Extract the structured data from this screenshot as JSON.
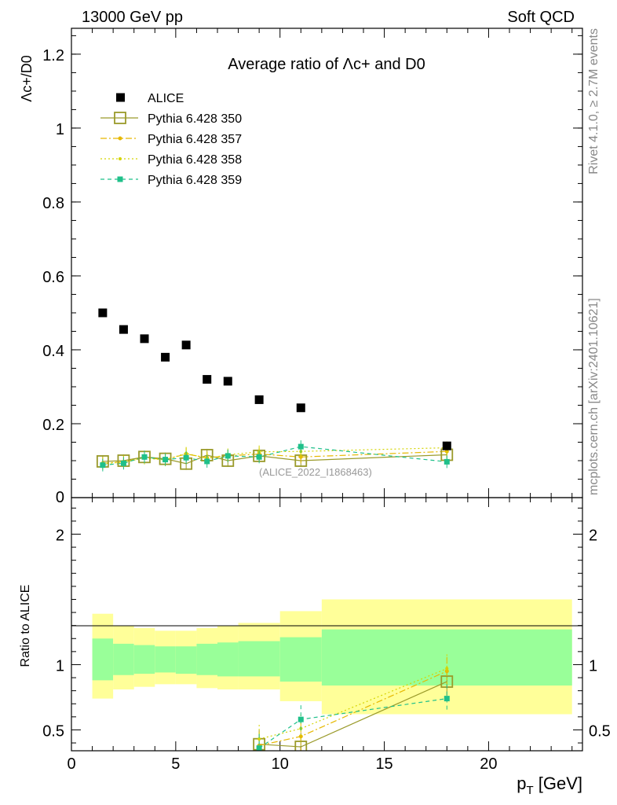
{
  "header": {
    "left": "13000 GeV pp",
    "right": "Soft QCD"
  },
  "side_labels": {
    "top": "Rivet 4.1.0, ≥ 2.7M events",
    "bottom": "mcplots.cern.ch [arXiv:2401.10621]"
  },
  "colors": {
    "alice": "#000000",
    "p350": "#9a9a2a",
    "p357": "#e6b800",
    "p358": "#d4d400",
    "p359": "#1fc08a",
    "band_inner": "#99ff99",
    "band_outer": "#ffff99"
  },
  "chart_data": [
    {
      "type": "scatter",
      "title": "Average ratio of Λc+ and D0",
      "xlabel": "",
      "ylabel": "Λc+/D0",
      "xlim": [
        0,
        24.5
      ],
      "ylim": [
        0,
        1.27
      ],
      "yticks": [
        0,
        0.2,
        0.4,
        0.6,
        0.8,
        1,
        1.2
      ],
      "ytick_labels": [
        "0",
        "0.2",
        "0.4",
        "0.6",
        "0.8",
        "1",
        "1.2"
      ],
      "analysis_label": "(ALICE_2022_I1868463)",
      "series": [
        {
          "name": "ALICE",
          "x": [
            1.5,
            2.5,
            3.5,
            4.5,
            5.5,
            6.5,
            7.5,
            9,
            11,
            18
          ],
          "values": [
            0.5,
            0.455,
            0.43,
            0.38,
            0.413,
            0.32,
            0.315,
            0.265,
            0.243,
            0.14
          ]
        },
        {
          "name": "Pythia 6.428 350",
          "x": [
            1.5,
            2.5,
            3.5,
            4.5,
            5.5,
            6.5,
            7.5,
            9,
            11,
            18
          ],
          "values": [
            0.098,
            0.1,
            0.11,
            0.105,
            0.092,
            0.115,
            0.1,
            0.113,
            0.1,
            0.116
          ]
        },
        {
          "name": "Pythia 6.428 357",
          "x": [
            1.5,
            2.5,
            3.5,
            4.5,
            5.5,
            6.5,
            7.5,
            9,
            11,
            18
          ],
          "values": [
            0.093,
            0.097,
            0.108,
            0.103,
            0.118,
            0.108,
            0.113,
            0.118,
            0.11,
            0.125
          ]
        },
        {
          "name": "Pythia 6.428 358",
          "x": [
            1.5,
            2.5,
            3.5,
            4.5,
            5.5,
            6.5,
            7.5,
            9,
            11,
            18
          ],
          "values": [
            0.092,
            0.096,
            0.107,
            0.102,
            0.12,
            0.106,
            0.116,
            0.124,
            0.125,
            0.135
          ]
        },
        {
          "name": "Pythia 6.428 359",
          "x": [
            1.5,
            2.5,
            3.5,
            4.5,
            5.5,
            6.5,
            7.5,
            9,
            11,
            18
          ],
          "values": [
            0.088,
            0.093,
            0.11,
            0.103,
            0.108,
            0.098,
            0.113,
            0.11,
            0.138,
            0.097
          ]
        }
      ]
    },
    {
      "type": "line",
      "title": "",
      "xlabel": "p_T [GeV]",
      "ylabel": "Ratio to ALICE",
      "xlim": [
        0,
        24.5
      ],
      "ylim": [
        0.34,
        2.28
      ],
      "xticks": [
        0,
        5,
        10,
        15,
        20
      ],
      "xtick_labels": [
        "0",
        "5",
        "10",
        "15",
        "20"
      ],
      "yticks": [
        0.5,
        1,
        2
      ],
      "ytick_labels": [
        "0.5",
        "1",
        "2"
      ],
      "bands": {
        "edges": [
          1,
          2,
          3,
          4,
          5,
          6,
          7,
          8,
          10,
          12,
          24
        ],
        "inner_low": [
          0.88,
          0.92,
          0.93,
          0.94,
          0.93,
          0.92,
          0.91,
          0.91,
          0.87,
          0.84
        ],
        "inner_high": [
          1.2,
          1.16,
          1.15,
          1.14,
          1.14,
          1.16,
          1.17,
          1.18,
          1.21,
          1.27
        ],
        "outer_low": [
          0.74,
          0.81,
          0.83,
          0.85,
          0.85,
          0.82,
          0.81,
          0.81,
          0.72,
          0.62
        ],
        "outer_high": [
          1.39,
          1.3,
          1.28,
          1.26,
          1.26,
          1.28,
          1.3,
          1.32,
          1.41,
          1.5
        ]
      },
      "series": [
        {
          "name": "Pythia 6.428 350",
          "x": [
            9,
            11,
            18
          ],
          "values": [
            0.39,
            0.37,
            0.87
          ]
        },
        {
          "name": "Pythia 6.428 357",
          "x": [
            9,
            11,
            18
          ],
          "values": [
            0.38,
            0.45,
            0.95
          ]
        },
        {
          "name": "Pythia 6.428 358",
          "x": [
            9,
            11,
            18
          ],
          "values": [
            0.43,
            0.51,
            0.97
          ]
        },
        {
          "name": "Pythia 6.428 359",
          "x": [
            9,
            11,
            18
          ],
          "values": [
            0.36,
            0.58,
            0.74
          ]
        }
      ]
    }
  ]
}
